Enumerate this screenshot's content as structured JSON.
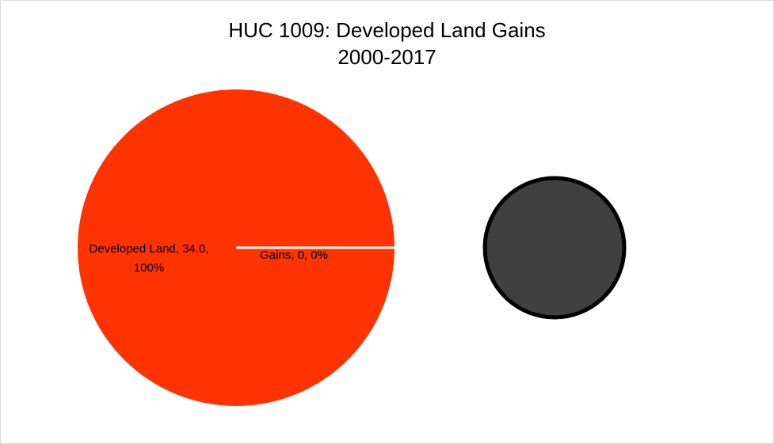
{
  "chart_data": {
    "type": "pie",
    "title": "HUC 1009: Developed Land Gains",
    "subtitle": "2000-2017",
    "slices": [
      {
        "name": "Developed Land",
        "value": 34.0,
        "value_label": "34.0",
        "percent_label": "100%",
        "color": "#FF3300"
      },
      {
        "name": "Gains",
        "value": 0,
        "value_label": "0",
        "percent_label": "0%",
        "color": "#404040"
      }
    ],
    "secondary_pie": {
      "type": "pie-of-pie",
      "fill_color": "#404040",
      "border_color": "#000000"
    },
    "legend": "none",
    "grid": false
  }
}
